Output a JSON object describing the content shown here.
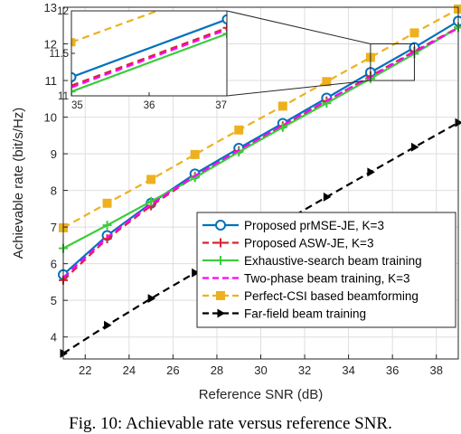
{
  "chart_data": {
    "type": "line",
    "xlabel": "Reference SNR (dB)",
    "ylabel": "Achievable rate (bit/s/Hz)",
    "xlim": [
      21,
      39
    ],
    "ylim": [
      3.4,
      13
    ],
    "xticks": [
      22,
      24,
      26,
      28,
      30,
      32,
      34,
      36,
      38
    ],
    "yticks": [
      4,
      5,
      6,
      7,
      8,
      9,
      10,
      11,
      12,
      13
    ],
    "grid": true,
    "legend_position": "bottom-right",
    "series": [
      {
        "name": "Proposed prMSE-JE, K=3",
        "color": "#0072BD",
        "line": "solid",
        "marker": "circle",
        "x": [
          21,
          23,
          25,
          27,
          29,
          31,
          33,
          35,
          37,
          39
        ],
        "y": [
          5.7,
          6.77,
          7.65,
          8.45,
          9.15,
          9.83,
          10.52,
          11.22,
          11.9,
          12.62
        ]
      },
      {
        "name": "Proposed ASW-JE, K=3",
        "color": "#D6262F",
        "line": "dashed",
        "marker": "plus",
        "x": [
          21,
          23,
          25,
          27,
          29,
          31,
          33,
          35,
          37,
          39
        ],
        "y": [
          5.55,
          6.68,
          7.58,
          8.38,
          9.08,
          9.76,
          10.44,
          11.12,
          11.8,
          12.45
        ]
      },
      {
        "name": "Exhaustive-search beam training",
        "color": "#3CCC3C",
        "line": "solid",
        "marker": "plus",
        "x": [
          21,
          23,
          25,
          27,
          29,
          31,
          33,
          35,
          37,
          39
        ],
        "y": [
          6.42,
          7.05,
          7.7,
          8.35,
          9.05,
          9.72,
          10.38,
          11.05,
          11.73,
          12.45
        ]
      },
      {
        "name": "Two-phase beam training, K=3",
        "color": "#FF00FF",
        "line": "dashed",
        "marker": "none",
        "x": [
          21,
          23,
          25,
          27,
          29,
          31,
          33,
          35,
          37,
          39
        ],
        "y": [
          5.62,
          6.72,
          7.62,
          8.4,
          9.1,
          9.78,
          10.45,
          11.1,
          11.78,
          12.43
        ]
      },
      {
        "name": "Perfect-CSI based beamforming",
        "color": "#EDB120",
        "line": "dashed",
        "marker": "square",
        "x": [
          21,
          23,
          25,
          27,
          29,
          31,
          33,
          35,
          37,
          39
        ],
        "y": [
          6.98,
          7.65,
          8.3,
          8.98,
          9.65,
          10.3,
          10.97,
          11.63,
          12.3,
          12.95
        ]
      },
      {
        "name": "Far-field beam training",
        "color": "#000000",
        "line": "dashed",
        "marker": "triangle-right",
        "x": [
          21,
          23,
          25,
          27,
          29,
          31,
          33,
          35,
          37,
          39
        ],
        "y": [
          3.55,
          4.32,
          5.05,
          5.75,
          6.45,
          7.13,
          7.82,
          8.5,
          9.18,
          9.85
        ]
      }
    ],
    "inset": {
      "xlim": [
        35,
        37
      ],
      "ylim": [
        11,
        12
      ],
      "xticks": [
        35,
        36,
        37
      ],
      "yticks": [
        11,
        11.5,
        12
      ],
      "ytick_labels": [
        "11",
        "11.5",
        "12"
      ]
    }
  },
  "caption": "Fig. 10: Achievable rate versus reference SNR."
}
